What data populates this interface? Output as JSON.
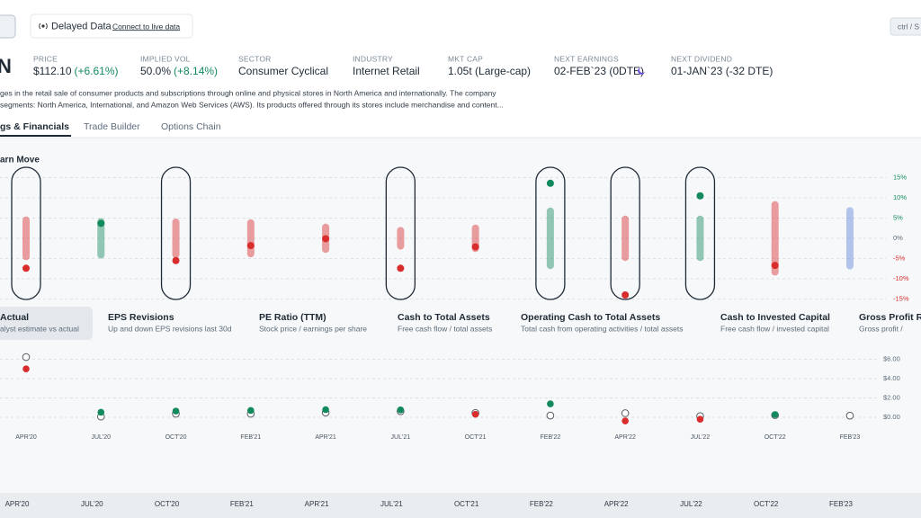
{
  "top_bar": {
    "data_status": "Delayed Data",
    "connect_link": "Connect to live data",
    "shortcut": "ctrl / S"
  },
  "header": {
    "ticker": "N",
    "fields": [
      {
        "label": "PRICE",
        "value": "$112.10",
        "change": "(+6.61%)"
      },
      {
        "label": "IMPLIED VOL",
        "value": "50.0%",
        "change": "(+8.14%)"
      },
      {
        "label": "SECTOR",
        "value": "Consumer Cyclical"
      },
      {
        "label": "INDUSTRY",
        "value": "Internet Retail"
      },
      {
        "label": "MKT CAP",
        "value": "1.05t (Large-cap)"
      },
      {
        "label": "NEXT EARNINGS",
        "value": "02-FEB`23 (0DTE)"
      },
      {
        "label": "NEXT DIVIDEND",
        "value": "01-JAN`23 (-32 DTE)"
      }
    ],
    "description": [
      "ges in the retail sale of consumer products and subscriptions through online and physical stores in North America and internationally. The company",
      "segments: North America, International, and Amazon Web Services (AWS). Its products offered through its stores include merchandise and content..."
    ]
  },
  "tabs": [
    "gs & Financials",
    "Trade Builder",
    "Options Chain"
  ],
  "active_tab": 0,
  "metrics": [
    {
      "title": "Actual",
      "subtitle": "alyst estimate vs actual"
    },
    {
      "title": "EPS Revisions",
      "subtitle": "Up and down EPS revisions last 30d"
    },
    {
      "title": "PE Ratio (TTM)",
      "subtitle": "Stock price / earnings per share"
    },
    {
      "title": "Cash to Total Assets",
      "subtitle": "Free cash flow / total assets"
    },
    {
      "title": "Operating Cash to Total Assets",
      "subtitle": "Total cash from operating activities / total assets"
    },
    {
      "title": "Cash to Invested Capital",
      "subtitle": "Free cash flow / invested capital"
    },
    {
      "title": "Gross Profit Ra",
      "subtitle": "Gross profit / "
    }
  ],
  "selected_metric": 0,
  "chart_data": [
    {
      "type": "range_dot",
      "title": "arn Move",
      "categories": [
        "APR'20",
        "JUL'20",
        "OCT'20",
        "FEB'21",
        "APR'21",
        "JUL'21",
        "OCT'21",
        "FEB'22",
        "APR'22",
        "JUL'22",
        "OCT'22",
        "FEB'23"
      ],
      "moves": [
        5.4,
        5.0,
        4.9,
        4.7,
        3.6,
        2.8,
        3.4,
        7.6,
        5.6,
        5.6,
        9.2,
        7.7
      ],
      "actual": [
        -7.4,
        3.7,
        -5.5,
        -1.8,
        -0.1,
        -7.4,
        -2.1,
        13.6,
        -14.0,
        10.5,
        -6.7,
        null
      ],
      "colors": [
        "#d92d2d",
        "#138a5e",
        "#d92d2d",
        "#d92d2d",
        "#d92d2d",
        "#d92d2d",
        "#d92d2d",
        "#138a5e",
        "#d92d2d",
        "#138a5e",
        "#d92d2d",
        "#5f86dc"
      ],
      "outlined": [
        true,
        false,
        true,
        false,
        false,
        true,
        false,
        true,
        true,
        true,
        false,
        false
      ],
      "ylim": [
        -17,
        17
      ],
      "yticks": [
        {
          "value": 15,
          "label": "15%"
        },
        {
          "value": 10,
          "label": "10%"
        },
        {
          "value": 5,
          "label": "5%"
        },
        {
          "value": 0,
          "label": "0%"
        },
        {
          "value": -5,
          "label": "-5%"
        },
        {
          "value": -10,
          "label": "-10%"
        },
        {
          "value": -15,
          "label": "-15%"
        }
      ],
      "grid": true
    },
    {
      "type": "estimate_actual",
      "categories": [
        "APR'20",
        "JUL'20",
        "OCT'20",
        "FEB'21",
        "APR'21",
        "JUL'21",
        "OCT'21",
        "FEB'22",
        "APR'22",
        "JUL'22",
        "OCT'22",
        "FEB'23"
      ],
      "estimate": [
        6.23,
        0.07,
        0.37,
        0.36,
        0.48,
        0.62,
        0.45,
        0.18,
        0.42,
        0.12,
        0.22,
        0.17
      ],
      "actual": [
        5.01,
        0.52,
        0.64,
        0.7,
        0.79,
        0.76,
        0.31,
        1.39,
        -0.38,
        -0.2,
        0.28,
        null
      ],
      "beat_color": "#138a5e",
      "miss_color": "#d92d2d",
      "ylim": [
        -1,
        7
      ],
      "yticks": [
        {
          "value": 6,
          "label": "$6.00"
        },
        {
          "value": 4,
          "label": "$4.00"
        },
        {
          "value": 2,
          "label": "$2.00"
        },
        {
          "value": 0,
          "label": "$0.00"
        }
      ],
      "grid": true
    }
  ]
}
